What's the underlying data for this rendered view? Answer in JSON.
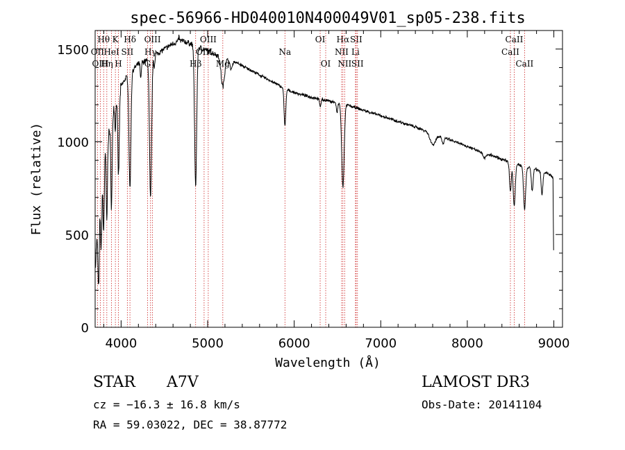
{
  "chart_data": {
    "type": "line",
    "title": "spec-56966-HD040010N400049V01_sp05-238.fits",
    "xlabel": "Wavelength (Å)",
    "ylabel": "Flux (relative)",
    "xlim": [
      3700,
      9100
    ],
    "ylim": [
      0,
      1600
    ],
    "xticks": [
      4000,
      5000,
      6000,
      7000,
      8000,
      9000
    ],
    "xtick_labels": [
      "4000",
      "5000",
      "6000",
      "7000",
      "8000",
      "9000"
    ],
    "yticks": [
      0,
      500,
      1000,
      1500
    ],
    "ytick_labels": [
      "0",
      "500",
      "1000",
      "1500"
    ],
    "series": [
      {
        "name": "spectrum",
        "color": "#000000",
        "continuum": [
          [
            3700,
            300
          ],
          [
            3720,
            480
          ],
          [
            3760,
            700
          ],
          [
            3800,
            900
          ],
          [
            3860,
            1050
          ],
          [
            3900,
            1160
          ],
          [
            3950,
            1250
          ],
          [
            4000,
            1300
          ],
          [
            4050,
            1340
          ],
          [
            4100,
            1370
          ],
          [
            4200,
            1420
          ],
          [
            4300,
            1440
          ],
          [
            4400,
            1470
          ],
          [
            4500,
            1500
          ],
          [
            4600,
            1530
          ],
          [
            4700,
            1545
          ],
          [
            4800,
            1530
          ],
          [
            4900,
            1510
          ],
          [
            5000,
            1490
          ],
          [
            5100,
            1470
          ],
          [
            5200,
            1455
          ],
          [
            5300,
            1435
          ],
          [
            5400,
            1410
          ],
          [
            5500,
            1385
          ],
          [
            5600,
            1360
          ],
          [
            5700,
            1335
          ],
          [
            5800,
            1310
          ],
          [
            5900,
            1285
          ],
          [
            6000,
            1265
          ],
          [
            6200,
            1240
          ],
          [
            6400,
            1220
          ],
          [
            6600,
            1200
          ],
          [
            6800,
            1170
          ],
          [
            7000,
            1140
          ],
          [
            7200,
            1110
          ],
          [
            7400,
            1080
          ],
          [
            7600,
            1045
          ],
          [
            7800,
            1010
          ],
          [
            8000,
            975
          ],
          [
            8200,
            940
          ],
          [
            8400,
            905
          ],
          [
            8600,
            875
          ],
          [
            8800,
            850
          ],
          [
            8950,
            825
          ],
          [
            9000,
            800
          ]
        ],
        "lines": [
          [
            3740,
            380,
            8
          ],
          [
            3770,
            330,
            7
          ],
          [
            3798,
            380,
            7
          ],
          [
            3835,
            420,
            7
          ],
          [
            3889,
            480,
            8
          ],
          [
            3933,
            150,
            6
          ],
          [
            3970,
            450,
            9
          ],
          [
            4102,
            620,
            11
          ],
          [
            4340,
            760,
            12
          ],
          [
            4861,
            760,
            12
          ],
          [
            5175,
            160,
            20
          ],
          [
            5893,
            200,
            10
          ],
          [
            6300,
            40,
            8
          ],
          [
            6563,
            450,
            14
          ],
          [
            7600,
            60,
            30
          ],
          [
            8498,
            160,
            10
          ],
          [
            8542,
            230,
            12
          ],
          [
            8662,
            230,
            12
          ],
          [
            8750,
            120,
            10
          ],
          [
            8863,
            120,
            10
          ]
        ],
        "features": [
          [
            4227,
            90,
            6
          ],
          [
            4383,
            60,
            6
          ],
          [
            4668,
            -25,
            6
          ],
          [
            5270,
            50,
            14
          ],
          [
            6495,
            55,
            8
          ],
          [
            7720,
            35,
            12
          ],
          [
            8200,
            25,
            20
          ]
        ],
        "noise": 12
      }
    ],
    "line_markers": [
      {
        "label": "Hθ",
        "x": 3798,
        "row": 0
      },
      {
        "label": "OII",
        "x": 3727,
        "row": 1
      },
      {
        "label": "OIII",
        "x": 3760,
        "row": 2
      },
      {
        "label": "K",
        "x": 3934,
        "row": 0
      },
      {
        "label": "HeI",
        "x": 3889,
        "row": 1
      },
      {
        "label": "Hη",
        "x": 3835,
        "row": 2
      },
      {
        "label": "SII",
        "x": 4072,
        "row": 1
      },
      {
        "label": "H",
        "x": 3969,
        "row": 2
      },
      {
        "label": "Hδ",
        "x": 4102,
        "row": 0
      },
      {
        "label": "OIII",
        "x": 4363,
        "row": 0
      },
      {
        "label": "Hγ",
        "x": 4340,
        "row": 1
      },
      {
        "label": "G",
        "x": 4305,
        "row": 2
      },
      {
        "label": "OIII",
        "x": 5007,
        "row": 0
      },
      {
        "label": "OIII",
        "x": 4959,
        "row": 1
      },
      {
        "label": "Hβ",
        "x": 4861,
        "row": 2
      },
      {
        "label": "Mg",
        "x": 5175,
        "row": 2
      },
      {
        "label": "Na",
        "x": 5893,
        "row": 1
      },
      {
        "label": "OI",
        "x": 6300,
        "row": 0
      },
      {
        "label": "OI",
        "x": 6364,
        "row": 2
      },
      {
        "label": "Hα",
        "x": 6563,
        "row": 0
      },
      {
        "label": "SII",
        "x": 6716,
        "row": 0
      },
      {
        "label": "NII",
        "x": 6548,
        "row": 1
      },
      {
        "label": "Li",
        "x": 6708,
        "row": 1
      },
      {
        "label": "NII",
        "x": 6583,
        "row": 2
      },
      {
        "label": "SII",
        "x": 6731,
        "row": 2
      },
      {
        "label": "CaII",
        "x": 8542,
        "row": 0
      },
      {
        "label": "CaII",
        "x": 8498,
        "row": 1
      },
      {
        "label": "CaII",
        "x": 8662,
        "row": 2
      }
    ]
  },
  "footer": {
    "object_class": "STAR",
    "subclass": "A7V",
    "survey": "LAMOST DR3",
    "cz": "cz = −16.3 ± 16.8 km/s",
    "obs_date": "Obs-Date: 20141104",
    "coords": "RA =  59.03022, DEC =  38.87772"
  },
  "colors": {
    "marker": "#cc2222",
    "axis": "#000000"
  }
}
